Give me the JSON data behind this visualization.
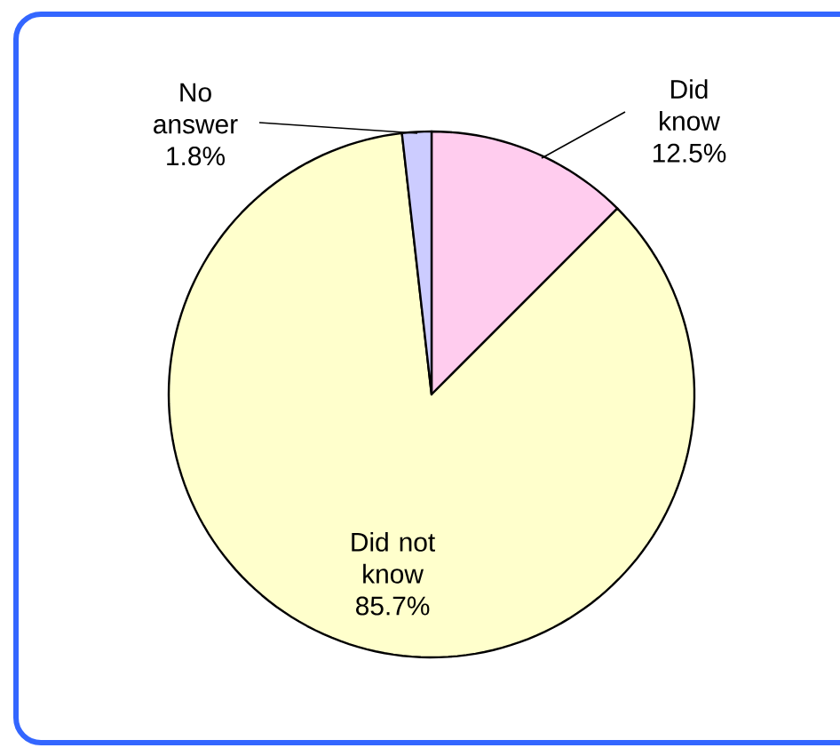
{
  "chart_data": {
    "type": "pie",
    "categories": [
      "Did know",
      "Did not know",
      "No answer"
    ],
    "values": [
      12.5,
      85.7,
      1.8
    ],
    "value_labels": [
      "12.5%",
      "85.7%",
      "1.8%"
    ],
    "colors": [
      "#ffccee",
      "#ffffcc",
      "#ccccff"
    ]
  }
}
